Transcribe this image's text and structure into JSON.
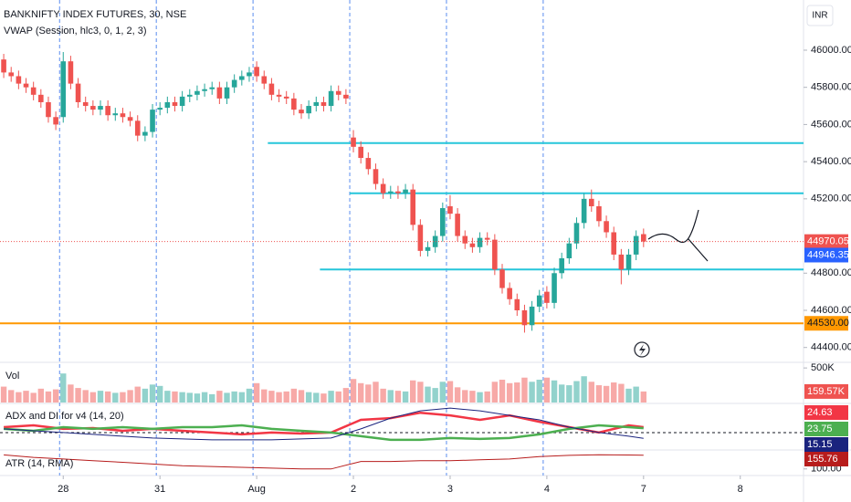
{
  "chart_data": {
    "type": "candlestick",
    "title": "BANKNIFTY INDEX FUTURES, 30, NSE",
    "subtitle": "VWAP (Session, hlc3, 0, 1, 2, 3)",
    "currency": "INR",
    "up_color": "#26a69a",
    "down_color": "#ef5350",
    "xlim": [
      -0.5,
      107.5
    ],
    "xticks": [
      {
        "value": 8,
        "label": "28"
      },
      {
        "value": 21,
        "label": "31"
      },
      {
        "value": 34,
        "label": "Aug"
      },
      {
        "value": 47,
        "label": "2"
      },
      {
        "value": 60,
        "label": "3"
      },
      {
        "value": 73,
        "label": "4"
      },
      {
        "value": 86,
        "label": "7"
      },
      {
        "value": 99,
        "label": "8"
      }
    ],
    "session_breaks": [
      8,
      21,
      34,
      47,
      60,
      73
    ],
    "ylim": [
      44320,
      46270
    ],
    "yticks": [
      {
        "value": 46000,
        "label": "46000.00"
      },
      {
        "value": 45800,
        "label": "45800.00"
      },
      {
        "value": 45600,
        "label": "45600.00"
      },
      {
        "value": 45400,
        "label": "45400.00"
      },
      {
        "value": 45200,
        "label": "45200.00"
      },
      {
        "value": 44800,
        "label": "44800.00"
      },
      {
        "value": 44600,
        "label": "44600.00"
      },
      {
        "value": 44400,
        "label": "44400.00"
      }
    ],
    "open": [
      45950,
      45880,
      45860,
      45820,
      45800,
      45760,
      45720,
      45640,
      45640,
      45940,
      45820,
      45720,
      45700,
      45680,
      45700,
      45650,
      45660,
      45640,
      45620,
      45540,
      45560,
      45680,
      45690,
      45720,
      45700,
      45750,
      45760,
      45780,
      45790,
      45800,
      45740,
      45800,
      45840,
      45860,
      45910,
      45860,
      45820,
      45760,
      45750,
      45740,
      45680,
      45660,
      45700,
      45720,
      45700,
      45780,
      45760,
      45530,
      45480,
      45420,
      45360,
      45280,
      45230,
      45240,
      45230,
      45250,
      45060,
      44920,
      44940,
      45000,
      45160,
      45120,
      45000,
      44960,
      44940,
      44990,
      44980,
      44820,
      44720,
      44660,
      44600,
      44520,
      44620,
      44700,
      44640,
      44800,
      44880,
      44960,
      45070,
      45200,
      45160,
      45080,
      45020,
      44900,
      44820,
      44900,
      45010
    ],
    "high": [
      45980,
      45910,
      45890,
      45850,
      45830,
      45790,
      45750,
      45670,
      45990,
      45970,
      45850,
      45750,
      45730,
      45730,
      45730,
      45690,
      45690,
      45670,
      45650,
      45590,
      45710,
      45720,
      45750,
      45750,
      45780,
      45790,
      45810,
      45820,
      45830,
      45830,
      45830,
      45870,
      45890,
      45910,
      45940,
      45890,
      45850,
      45790,
      45780,
      45770,
      45710,
      45730,
      45750,
      45750,
      45810,
      45810,
      45790,
      45570,
      45510,
      45450,
      45390,
      45310,
      45270,
      45270,
      45280,
      45280,
      45090,
      44970,
      45030,
      45180,
      45220,
      45150,
      45030,
      44990,
      45020,
      45020,
      45010,
      44850,
      44750,
      44690,
      44630,
      44650,
      44710,
      44730,
      44830,
      44910,
      44990,
      45100,
      45230,
      45250,
      45190,
      45110,
      45050,
      44930,
      44930,
      45030,
      45040
    ],
    "low": [
      45850,
      45830,
      45790,
      45770,
      45730,
      45690,
      45610,
      45570,
      45610,
      45790,
      45690,
      45670,
      45650,
      45650,
      45620,
      45620,
      45610,
      45590,
      45510,
      45510,
      45530,
      45650,
      45660,
      45670,
      45670,
      45720,
      45730,
      45750,
      45760,
      45710,
      45710,
      45770,
      45810,
      45830,
      45830,
      45790,
      45730,
      45720,
      45710,
      45650,
      45630,
      45630,
      45670,
      45670,
      45670,
      45730,
      45710,
      45450,
      45390,
      45330,
      45250,
      45200,
      45200,
      45200,
      45200,
      45030,
      44890,
      44890,
      44910,
      44970,
      45090,
      44970,
      44930,
      44910,
      44910,
      44950,
      44790,
      44690,
      44630,
      44570,
      44480,
      44490,
      44590,
      44610,
      44610,
      44770,
      44850,
      44930,
      45040,
      45130,
      45050,
      44990,
      44870,
      44740,
      44790,
      44870,
      44940
    ],
    "close": [
      45880,
      45860,
      45820,
      45800,
      45760,
      45720,
      45640,
      45600,
      45940,
      45820,
      45720,
      45700,
      45680,
      45700,
      45650,
      45660,
      45640,
      45620,
      45540,
      45560,
      45680,
      45690,
      45720,
      45700,
      45750,
      45760,
      45780,
      45790,
      45800,
      45740,
      45800,
      45840,
      45860,
      45880,
      45860,
      45820,
      45760,
      45750,
      45740,
      45680,
      45660,
      45700,
      45720,
      45700,
      45780,
      45760,
      45740,
      45480,
      45420,
      45360,
      45280,
      45230,
      45240,
      45230,
      45250,
      45060,
      44920,
      44940,
      45000,
      45150,
      45120,
      45000,
      44960,
      44940,
      44990,
      44980,
      44820,
      44720,
      44660,
      44600,
      44520,
      44620,
      44680,
      44640,
      44800,
      44880,
      44960,
      45070,
      45200,
      45160,
      45080,
      45020,
      44900,
      44820,
      44900,
      45000,
      44970.05
    ],
    "vwap": 44946.35,
    "vwap_color": "#2962ff",
    "hlines": [
      {
        "value": 45500,
        "color": "#26c6da",
        "start": 35.5
      },
      {
        "value": 45230,
        "color": "#26c6da",
        "start": 46.5
      },
      {
        "value": 44820,
        "color": "#26c6da",
        "start": 42.5
      },
      {
        "value": 44530,
        "label": "44530.00",
        "color": "#ff9800",
        "start": -0.5
      }
    ],
    "volume": {
      "title": "Vol",
      "ylim": [
        0,
        581000
      ],
      "yticks": [
        {
          "value": 500000,
          "label": "500K"
        }
      ],
      "values": [
        230000,
        180000,
        150000,
        170000,
        140000,
        200000,
        160000,
        190000,
        420000,
        260000,
        210000,
        180000,
        150000,
        170000,
        160000,
        140000,
        150000,
        180000,
        230000,
        200000,
        260000,
        240000,
        170000,
        160000,
        150000,
        140000,
        130000,
        150000,
        120000,
        170000,
        140000,
        160000,
        150000,
        200000,
        280000,
        190000,
        170000,
        150000,
        160000,
        200000,
        180000,
        150000,
        140000,
        130000,
        170000,
        160000,
        210000,
        340000,
        280000,
        260000,
        300000,
        200000,
        180000,
        170000,
        160000,
        320000,
        300000,
        230000,
        210000,
        300000,
        310000,
        220000,
        180000,
        170000,
        150000,
        160000,
        300000,
        330000,
        280000,
        290000,
        360000,
        300000,
        330000,
        360000,
        320000,
        260000,
        250000,
        310000,
        380000,
        300000,
        250000,
        240000,
        290000,
        270000,
        200000,
        230000,
        159570
      ],
      "last_value_label": "159.57K"
    },
    "adx": {
      "title": "ADX and DI for v4 (14, 20)",
      "ylim": [
        6,
        44
      ],
      "level": 20,
      "x": [
        0,
        4,
        8,
        12,
        16,
        20,
        24,
        28,
        32,
        36,
        40,
        44,
        48,
        52,
        56,
        60,
        64,
        68,
        72,
        76,
        80,
        84,
        86
      ],
      "series": [
        {
          "color": "#f23645",
          "values": [
            24.6,
            26.2,
            23.1,
            23.8,
            21.5,
            23.1,
            21.5,
            20,
            18.5,
            20,
            19.2,
            20,
            30.8,
            32.3,
            36.9,
            34.6,
            30.8,
            34.6,
            29.2,
            24.6,
            20,
            26.2,
            24.63
          ]
        },
        {
          "color": "#4caf50",
          "values": [
            23.1,
            21.5,
            24.6,
            23.1,
            24.6,
            23.1,
            24.6,
            24.6,
            26.2,
            23.1,
            21.5,
            20,
            16.9,
            13.8,
            13.8,
            15.4,
            14.6,
            15.4,
            18.5,
            23.1,
            26.2,
            24.6,
            23.75
          ]
        },
        {
          "color": "#1a237e",
          "values": [
            23.1,
            21.5,
            20,
            18.5,
            16.9,
            15.4,
            14.6,
            13.8,
            13.8,
            13.8,
            14.6,
            15.4,
            23.1,
            32.3,
            38.5,
            40.8,
            38.5,
            34.6,
            30.8,
            24.6,
            20,
            16.9,
            15.15
          ]
        }
      ]
    },
    "atr": {
      "title": "ATR (14, RMA)",
      "ylim": [
        77,
        173
      ],
      "yticks": [
        {
          "value": 100,
          "label": "100.00"
        }
      ],
      "color": "#b71c1c",
      "x": [
        0,
        4,
        8,
        12,
        16,
        20,
        24,
        28,
        32,
        36,
        40,
        44,
        48,
        52,
        56,
        60,
        64,
        68,
        72,
        76,
        80,
        84,
        86
      ],
      "values": [
        156.7,
        146.7,
        140,
        133.3,
        126.7,
        120,
        113.3,
        110,
        106.7,
        103.3,
        100,
        100,
        130,
        130,
        133.3,
        133.3,
        136.7,
        140,
        150,
        155,
        157,
        156.5,
        155.76
      ]
    }
  }
}
